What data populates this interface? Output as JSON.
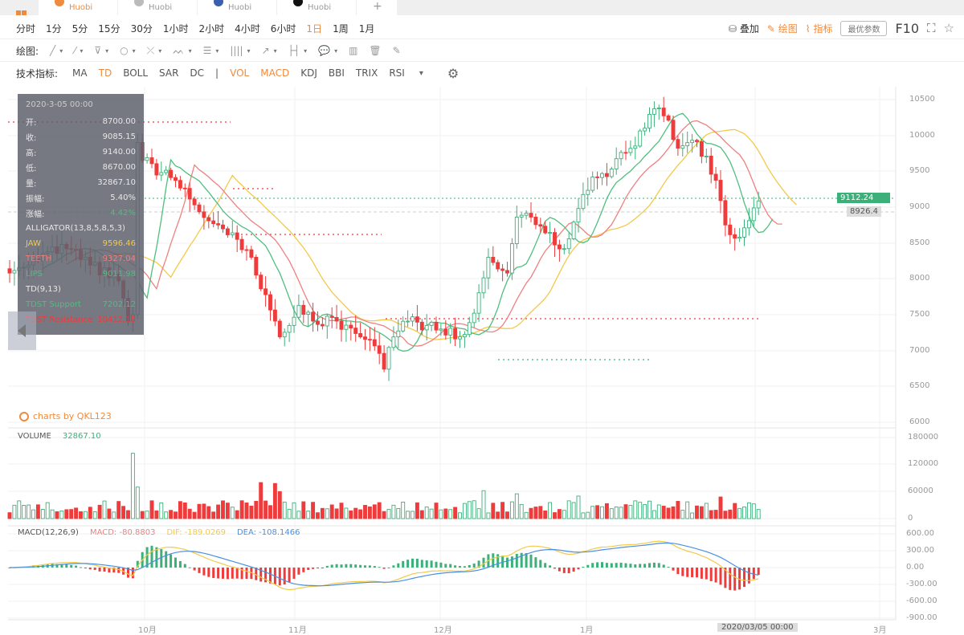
{
  "tabs": [
    {
      "label": "Huobi",
      "color": "#f08a3c",
      "active": true
    },
    {
      "label": "Huobi",
      "color": "#bbb"
    },
    {
      "label": "Huobi",
      "color": "#3a5fb0"
    },
    {
      "label": "Huobi",
      "color": "#111"
    }
  ],
  "tab_add": "+",
  "periods": [
    "分时",
    "1分",
    "5分",
    "15分",
    "30分",
    "1小时",
    "2小时",
    "4小时",
    "6小时",
    "1日",
    "1周",
    "1月"
  ],
  "selected_period": "1日",
  "right_tools": {
    "overlay": "叠加",
    "draw": "绘图",
    "indicator": "指标",
    "best_params": "最优参数",
    "f10": "F10",
    "fullscreen": "⛶",
    "favorite": "☆"
  },
  "draw_label": "绘图:",
  "draw_tools": [
    {
      "name": "line",
      "glyph": "╱"
    },
    {
      "name": "ray",
      "glyph": "⁄"
    },
    {
      "name": "fan",
      "glyph": "⊽"
    },
    {
      "name": "circle",
      "glyph": "○"
    },
    {
      "name": "cross",
      "glyph": "⤫"
    },
    {
      "name": "pattern",
      "glyph": "ᨓ"
    },
    {
      "name": "fibonacci",
      "glyph": "☰"
    },
    {
      "name": "gann",
      "glyph": "||||"
    },
    {
      "name": "arrow",
      "glyph": "↗"
    },
    {
      "name": "range",
      "glyph": "├┤"
    },
    {
      "name": "comment",
      "glyph": "💬"
    }
  ],
  "draw_extra": [
    {
      "name": "bar-chart",
      "glyph": "▥"
    },
    {
      "name": "trash",
      "glyph": "🗑"
    },
    {
      "name": "pen",
      "glyph": "✎"
    }
  ],
  "indicator_label": "技术指标:",
  "indicators": [
    {
      "label": "MA",
      "on": false
    },
    {
      "label": "TD",
      "on": true
    },
    {
      "label": "BOLL",
      "on": false
    },
    {
      "label": "SAR",
      "on": false
    },
    {
      "label": "DC",
      "on": false
    },
    {
      "label": "|",
      "on": false
    },
    {
      "label": "VOL",
      "on": true
    },
    {
      "label": "MACD",
      "on": true
    },
    {
      "label": "KDJ",
      "on": false
    },
    {
      "label": "BBI",
      "on": false
    },
    {
      "label": "TRIX",
      "on": false
    },
    {
      "label": "RSI",
      "on": false
    }
  ],
  "indicator_more": "▾",
  "settings": "⚙",
  "info": {
    "date": "2020-3-05 00:00",
    "rows": [
      {
        "k": "开:",
        "v": "8700.00"
      },
      {
        "k": "收:",
        "v": "9085.15"
      },
      {
        "k": "高:",
        "v": "9140.00"
      },
      {
        "k": "低:",
        "v": "8670.00"
      },
      {
        "k": "量:",
        "v": "32867.10"
      },
      {
        "k": "振幅:",
        "v": "5.40%"
      },
      {
        "k": "涨幅:",
        "v": "4.42%"
      }
    ],
    "alligator": "ALLIGATOR(13,8,5,8,5,3)",
    "jaw_label": "JAW",
    "jaw_value": "9596.46",
    "teeth_label": "TEETH",
    "teeth_value": "9327.04",
    "lips_label": "LIPS",
    "lips_value": "9011.98",
    "td": "TD(9,13)",
    "td_support": "TDST Support",
    "td_support_value": "7202.12",
    "td_resistance": "TDST Resistance",
    "td_resistance_value": "10412.18"
  },
  "credit": "charts by QKL123",
  "last_price": "9112.24",
  "ref_price": "8926.4",
  "volume": {
    "label": "VOLUME",
    "value": "32867.10"
  },
  "macd": {
    "label": "MACD(12,26,9)",
    "macd": "MACD: -80.8803",
    "dif": "DIF: -189.0269",
    "dea": "DEA: -108.1466"
  },
  "colors": {
    "up": "#3db07a",
    "down": "#ee3b3b",
    "jaw": "#f3c94a",
    "teeth": "#ef8080",
    "lips": "#4fbf7f",
    "dif": "#f3c94a",
    "dea": "#4a90e2",
    "accent": "#f08a3c"
  },
  "chart_data": {
    "type": "candlestick",
    "price_axis": [
      "10500",
      "10000",
      "9500",
      "9000",
      "8500",
      "8000",
      "7500",
      "7000",
      "6500",
      "6000"
    ],
    "ylim": [
      6000,
      10500
    ],
    "volume_axis": [
      "180000",
      "120000",
      "60000",
      "0"
    ],
    "volume_ylim": [
      0,
      180000
    ],
    "macd_axis": [
      "600.00",
      "300.00",
      "0.00",
      "-300.00",
      "-600.00",
      "-900.00"
    ],
    "macd_ylim": [
      -900,
      600
    ],
    "x_labels": [
      "10月",
      "11月",
      "12月",
      "1月",
      "2020/03/05 00:00",
      "3月"
    ],
    "close_keypoints": [
      [
        0,
        8080
      ],
      [
        5,
        8300
      ],
      [
        12,
        8420
      ],
      [
        17,
        8190
      ],
      [
        23,
        7970
      ],
      [
        25,
        7410
      ],
      [
        26,
        7500
      ],
      [
        27,
        9900
      ],
      [
        28,
        9650
      ],
      [
        32,
        9480
      ],
      [
        37,
        9260
      ],
      [
        39,
        9030
      ],
      [
        44,
        8750
      ],
      [
        47,
        8640
      ],
      [
        51,
        8300
      ],
      [
        53,
        7860
      ],
      [
        56,
        7410
      ],
      [
        57,
        7190
      ],
      [
        61,
        7630
      ],
      [
        64,
        7410
      ],
      [
        69,
        7410
      ],
      [
        74,
        7190
      ],
      [
        78,
        6960
      ],
      [
        79,
        6740
      ],
      [
        81,
        7190
      ],
      [
        84,
        7410
      ],
      [
        88,
        7350
      ],
      [
        91,
        7300
      ],
      [
        95,
        7190
      ],
      [
        98,
        7520
      ],
      [
        101,
        8300
      ],
      [
        105,
        8080
      ],
      [
        107,
        8860
      ],
      [
        110,
        8860
      ],
      [
        113,
        8640
      ],
      [
        117,
        8420
      ],
      [
        120,
        8980
      ],
      [
        123,
        9420
      ],
      [
        127,
        9530
      ],
      [
        130,
        9760
      ],
      [
        134,
        10100
      ],
      [
        136,
        10370
      ],
      [
        139,
        10210
      ],
      [
        141,
        9820
      ],
      [
        144,
        9930
      ],
      [
        147,
        9710
      ],
      [
        150,
        9090
      ],
      [
        151,
        8750
      ],
      [
        154,
        8580
      ],
      [
        156,
        8810
      ],
      [
        158,
        9085
      ]
    ],
    "volume_base": 25000,
    "volume_spikes": [
      [
        26,
        145000
      ],
      [
        27,
        70000
      ],
      [
        53,
        80000
      ],
      [
        56,
        78000
      ],
      [
        57,
        60000
      ],
      [
        100,
        62000
      ],
      [
        107,
        55000
      ],
      [
        120,
        50000
      ],
      [
        150,
        48000
      ]
    ],
    "support_levels": [
      {
        "price": 10412,
        "type": "resistance"
      },
      {
        "price": 7450,
        "type": "resistance"
      },
      {
        "price": 6880,
        "type": "support"
      }
    ]
  }
}
